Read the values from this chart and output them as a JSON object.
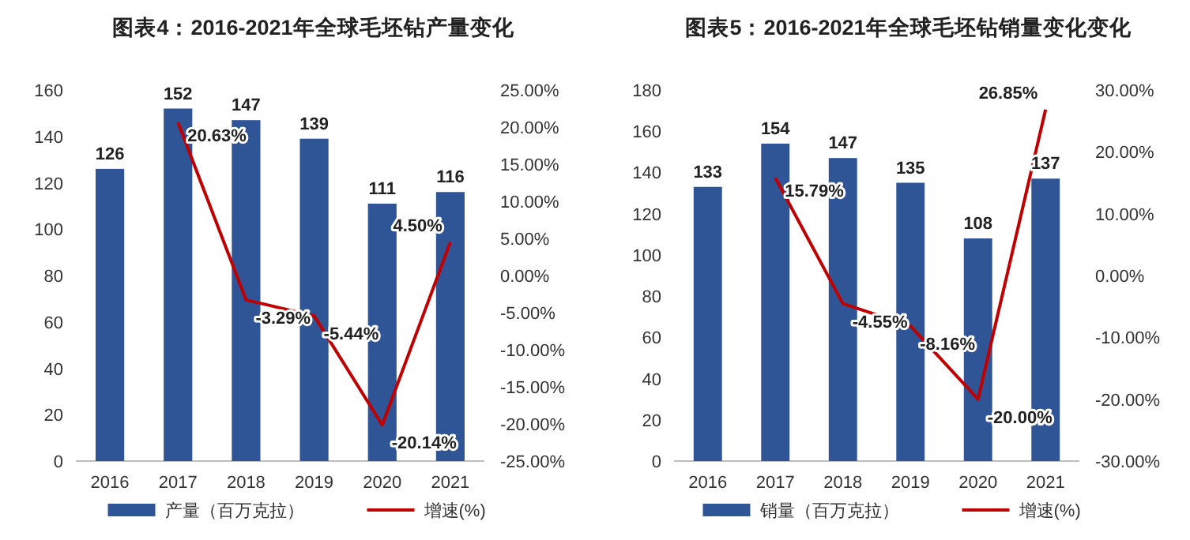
{
  "chart_data": [
    {
      "type": "bar",
      "title": "图表4：2016-2021年全球毛坯钻产量变化",
      "categories": [
        "2016",
        "2017",
        "2018",
        "2019",
        "2020",
        "2021"
      ],
      "series": [
        {
          "name": "产量（百万克拉）",
          "color": "#2f5597",
          "values": [
            126,
            152,
            147,
            139,
            111,
            116
          ],
          "value_labels": [
            "126",
            "152",
            "147",
            "139",
            "111",
            "116"
          ]
        },
        {
          "name": "增速(%)",
          "type": "line",
          "axis": "y2",
          "color": "#c00000",
          "values": [
            null,
            20.63,
            -3.29,
            -5.44,
            -20.14,
            4.5
          ],
          "value_labels": [
            null,
            "20.63%",
            "-3.29%",
            "-5.44%",
            "-20.14%",
            "4.50%"
          ]
        }
      ],
      "ylim": [
        0,
        160
      ],
      "yticks": [
        0,
        20,
        40,
        60,
        80,
        100,
        120,
        140,
        160
      ],
      "y2lim": [
        -25,
        25
      ],
      "y2ticks": [
        {
          "value": -25,
          "label": "-25.00%"
        },
        {
          "value": -20,
          "label": "-20.00%"
        },
        {
          "value": -15,
          "label": "-15.00%"
        },
        {
          "value": -10,
          "label": "-10.00%"
        },
        {
          "value": -5,
          "label": "-5.00%"
        },
        {
          "value": 0,
          "label": "0.00%"
        },
        {
          "value": 5,
          "label": "5.00%"
        },
        {
          "value": 10,
          "label": "10.00%"
        },
        {
          "value": 15,
          "label": "15.00%"
        },
        {
          "value": 20,
          "label": "20.00%"
        },
        {
          "value": 25,
          "label": "25.00%"
        }
      ],
      "legend": "bottom"
    },
    {
      "type": "bar",
      "title": "图表5：2016-2021年全球毛坯钻销量变化变化",
      "categories": [
        "2016",
        "2017",
        "2018",
        "2019",
        "2020",
        "2021"
      ],
      "series": [
        {
          "name": "销量（百万克拉）",
          "color": "#2f5597",
          "values": [
            133,
            154,
            147,
            135,
            108,
            137
          ],
          "value_labels": [
            "133",
            "154",
            "147",
            "135",
            "108",
            "137"
          ]
        },
        {
          "name": "增速(%)",
          "type": "line",
          "axis": "y2",
          "color": "#c00000",
          "values": [
            null,
            15.79,
            -4.55,
            -8.16,
            -20.0,
            26.85
          ],
          "value_labels": [
            null,
            "15.79%",
            "-4.55%",
            "-8.16%",
            "-20.00%",
            "26.85%"
          ]
        }
      ],
      "ylim": [
        0,
        180
      ],
      "yticks": [
        0,
        20,
        40,
        60,
        80,
        100,
        120,
        140,
        160,
        180
      ],
      "y2lim": [
        -30,
        30
      ],
      "y2ticks": [
        {
          "value": -30,
          "label": "-30.00%"
        },
        {
          "value": -20,
          "label": "-20.00%"
        },
        {
          "value": -10,
          "label": "-10.00%"
        },
        {
          "value": 0,
          "label": "0.00%"
        },
        {
          "value": 10,
          "label": "10.00%"
        },
        {
          "value": 20,
          "label": "20.00%"
        },
        {
          "value": 30,
          "label": "30.00%"
        }
      ],
      "legend": "bottom"
    }
  ]
}
